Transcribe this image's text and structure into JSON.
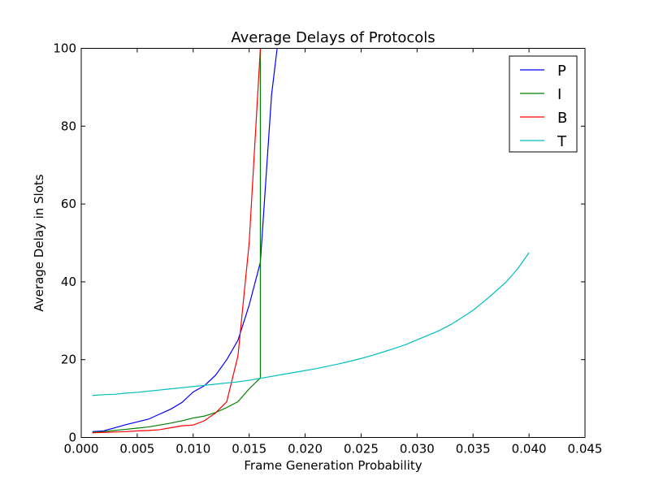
{
  "chart_data": {
    "type": "line",
    "title": "Average Delays of Protocols",
    "xlabel": "Frame Generation Probability",
    "ylabel": "Average Delay in Slots",
    "xlim": [
      0.0,
      0.045
    ],
    "ylim": [
      0,
      100
    ],
    "xticks": [
      0.0,
      0.005,
      0.01,
      0.015,
      0.02,
      0.025,
      0.03,
      0.035,
      0.04,
      0.045
    ],
    "xtick_labels": [
      "0.000",
      "0.005",
      "0.010",
      "0.015",
      "0.020",
      "0.025",
      "0.030",
      "0.035",
      "0.040",
      "0.045"
    ],
    "yticks": [
      0,
      20,
      40,
      60,
      80,
      100
    ],
    "ytick_labels": [
      "0",
      "20",
      "40",
      "60",
      "80",
      "100"
    ],
    "grid": false,
    "legend_position": "top-right",
    "series": [
      {
        "name": "P",
        "color": "#0000ff",
        "x": [
          0.001,
          0.002,
          0.003,
          0.004,
          0.005,
          0.006,
          0.007,
          0.008,
          0.009,
          0.01,
          0.011,
          0.012,
          0.013,
          0.014,
          0.015,
          0.016,
          0.017,
          0.0175
        ],
        "y": [
          1.5,
          1.7,
          2.5,
          3.3,
          4.0,
          4.7,
          6.0,
          7.3,
          9.0,
          11.7,
          13.3,
          16.0,
          20.0,
          25.0,
          34.0,
          45.0,
          88.0,
          100.0
        ]
      },
      {
        "name": "I",
        "color": "#008000",
        "x": [
          0.001,
          0.002,
          0.003,
          0.004,
          0.005,
          0.006,
          0.007,
          0.008,
          0.009,
          0.01,
          0.011,
          0.012,
          0.013,
          0.014,
          0.015,
          0.016,
          0.016
        ],
        "y": [
          1.3,
          1.5,
          1.8,
          2.1,
          2.4,
          2.7,
          3.2,
          3.7,
          4.3,
          5.0,
          5.5,
          6.4,
          7.7,
          9.2,
          12.5,
          15.3,
          100.0
        ]
      },
      {
        "name": "B",
        "color": "#ff0000",
        "x": [
          0.001,
          0.002,
          0.003,
          0.004,
          0.005,
          0.006,
          0.007,
          0.008,
          0.009,
          0.01,
          0.011,
          0.012,
          0.013,
          0.014,
          0.015,
          0.016
        ],
        "y": [
          1.2,
          1.3,
          1.4,
          1.5,
          1.7,
          1.8,
          2.0,
          2.5,
          3.0,
          3.2,
          4.3,
          6.3,
          9.2,
          21.0,
          50.0,
          100.0
        ]
      },
      {
        "name": "T",
        "color": "#00bfbf",
        "x": [
          0.001,
          0.002,
          0.003,
          0.004,
          0.005,
          0.006,
          0.007,
          0.008,
          0.009,
          0.01,
          0.011,
          0.012,
          0.013,
          0.014,
          0.015,
          0.016,
          0.017,
          0.018,
          0.019,
          0.02,
          0.021,
          0.022,
          0.023,
          0.024,
          0.025,
          0.026,
          0.027,
          0.028,
          0.029,
          0.03,
          0.031,
          0.032,
          0.033,
          0.034,
          0.035,
          0.036,
          0.037,
          0.038,
          0.039,
          0.04
        ],
        "y": [
          10.8,
          11.0,
          11.1,
          11.4,
          11.6,
          11.9,
          12.2,
          12.5,
          12.8,
          13.1,
          13.4,
          13.7,
          14.0,
          14.3,
          14.7,
          15.2,
          15.7,
          16.2,
          16.7,
          17.2,
          17.7,
          18.3,
          18.9,
          19.6,
          20.3,
          21.1,
          22.0,
          22.9,
          23.9,
          25.1,
          26.3,
          27.5,
          29.0,
          30.8,
          32.7,
          35.0,
          37.5,
          40.1,
          43.4,
          47.5
        ]
      }
    ]
  }
}
